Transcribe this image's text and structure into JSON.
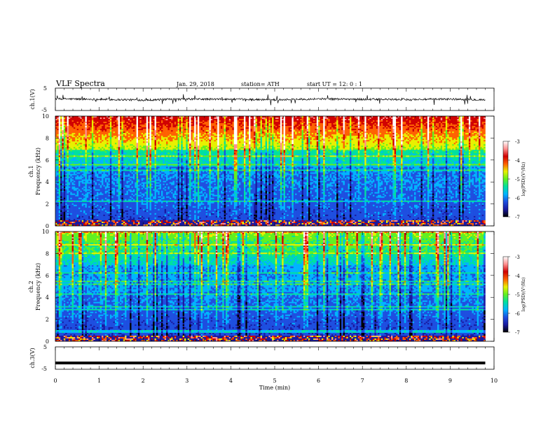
{
  "header": {
    "title": "VLF  Spectra",
    "date": "Jan. 29, 2018",
    "station": "station= ATH",
    "start_ut": "start  UT  =    12: 0  : 1"
  },
  "colors": {
    "trace": "#000000",
    "colormap": [
      "#000000",
      "#1a1aa0",
      "#1e4fe0",
      "#00b4ff",
      "#00e0a0",
      "#60f020",
      "#e8f000",
      "#ff6000",
      "#d00000",
      "#ff9090",
      "#ffffff"
    ]
  },
  "chart_data": [
    {
      "type": "line",
      "panel": "ch1-waveform",
      "ylabel": "ch.1(V)",
      "ylim": [
        -5,
        5
      ],
      "yticks": [
        "5",
        "-5"
      ],
      "xlim": [
        0,
        10
      ],
      "series": [
        {
          "x": [
            0,
            1,
            2,
            3,
            4,
            5,
            6,
            7,
            8,
            9,
            9.8
          ],
          "values": [
            0.2,
            0,
            -0.3,
            0.1,
            0,
            -0.2,
            0.2,
            0,
            -0.1,
            0.1,
            -0.2
          ]
        }
      ]
    },
    {
      "type": "heatmap",
      "panel": "ch1-spectrogram",
      "ylabel": "ch.1\nFrequency  (kHz)",
      "ylim": [
        0,
        10
      ],
      "yticks": [
        "0",
        "2",
        "4",
        "6",
        "8",
        "10"
      ],
      "xlim": [
        0,
        10
      ],
      "data_end_min": 9.8,
      "colorbar": {
        "label": "log(PSD)(V²/Hz)",
        "range": [
          -7,
          -3
        ],
        "ticks": [
          "-3",
          "-4",
          "-5",
          "-6",
          "-7"
        ]
      }
    },
    {
      "type": "heatmap",
      "panel": "ch2-spectrogram",
      "ylabel": "ch.2\nFrequency  (kHz)",
      "ylim": [
        0,
        10
      ],
      "yticks": [
        "0",
        "2",
        "4",
        "6",
        "8",
        "10"
      ],
      "xlim": [
        0,
        10
      ],
      "data_end_min": 9.8,
      "colorbar": {
        "label": "log(PSD)(V²/Hz)",
        "range": [
          -7,
          -3
        ],
        "ticks": [
          "-3",
          "-4",
          "-5",
          "-6",
          "-7"
        ]
      }
    },
    {
      "type": "line",
      "panel": "ch3-waveform",
      "ylabel": "ch.3(V)",
      "ylim": [
        -5,
        5
      ],
      "yticks": [
        "5",
        "-5"
      ],
      "xlim": [
        0,
        10
      ],
      "series": [
        {
          "x": [
            0,
            9.8
          ],
          "values": [
            -2.2,
            -2.2
          ]
        }
      ]
    }
  ],
  "xaxis": {
    "label": "Time  (min)",
    "ticks": [
      "0",
      "1",
      "2",
      "3",
      "4",
      "5",
      "6",
      "7",
      "8",
      "9",
      "10"
    ]
  }
}
